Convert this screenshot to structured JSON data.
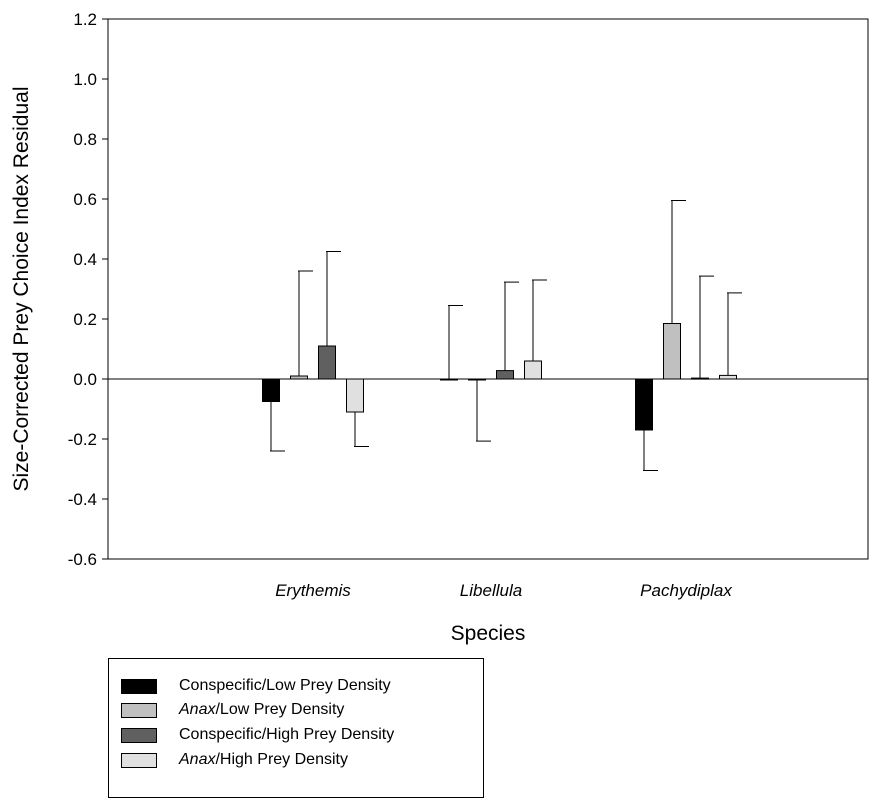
{
  "chart_data": {
    "type": "bar",
    "xlabel": "Species",
    "ylabel": "Size-Corrected Prey Choice Index Residual",
    "ylim": [
      -0.6,
      1.2
    ],
    "yticks": [
      "-0.6",
      "-0.4",
      "-0.2",
      "0.0",
      "0.2",
      "0.4",
      "0.6",
      "0.8",
      "1.0",
      "1.2"
    ],
    "ytick_values": [
      -0.6,
      -0.4,
      -0.2,
      0.0,
      0.2,
      0.4,
      0.6,
      0.8,
      1.0,
      1.2
    ],
    "categories": [
      "Erythemis",
      "Libellula",
      "Pachydiplax"
    ],
    "series": [
      {
        "name": "Conspecific/Low Prey Density",
        "label_italic": "",
        "label_rest": "Conspecific/Low Prey Density",
        "color": "#000000",
        "values": [
          -0.075,
          0.0,
          -0.17
        ],
        "error": [
          0.165,
          0.245,
          0.135
        ]
      },
      {
        "name": "Anax/Low Prey Density",
        "label_italic": "Anax",
        "label_rest": "/Low Prey Density",
        "color": "#c0c0c0",
        "values": [
          0.01,
          -0.002,
          0.185
        ],
        "error": [
          0.35,
          0.205,
          0.41
        ]
      },
      {
        "name": "Conspecific/High Prey Density",
        "label_italic": "",
        "label_rest": "Conspecific/High Prey Density",
        "color": "#606060",
        "values": [
          0.11,
          0.028,
          0.003
        ],
        "error": [
          0.315,
          0.295,
          0.34
        ]
      },
      {
        "name": "Anax/High Prey Density",
        "label_italic": "Anax",
        "label_rest": "/High Prey Density",
        "color": "#e0e0e0",
        "values": [
          -0.11,
          0.06,
          0.012
        ],
        "error": [
          0.115,
          0.27,
          0.275
        ]
      }
    ],
    "error_bar_direction": "away-from-zero",
    "grid": false,
    "legend_placement": "bottom-left"
  }
}
